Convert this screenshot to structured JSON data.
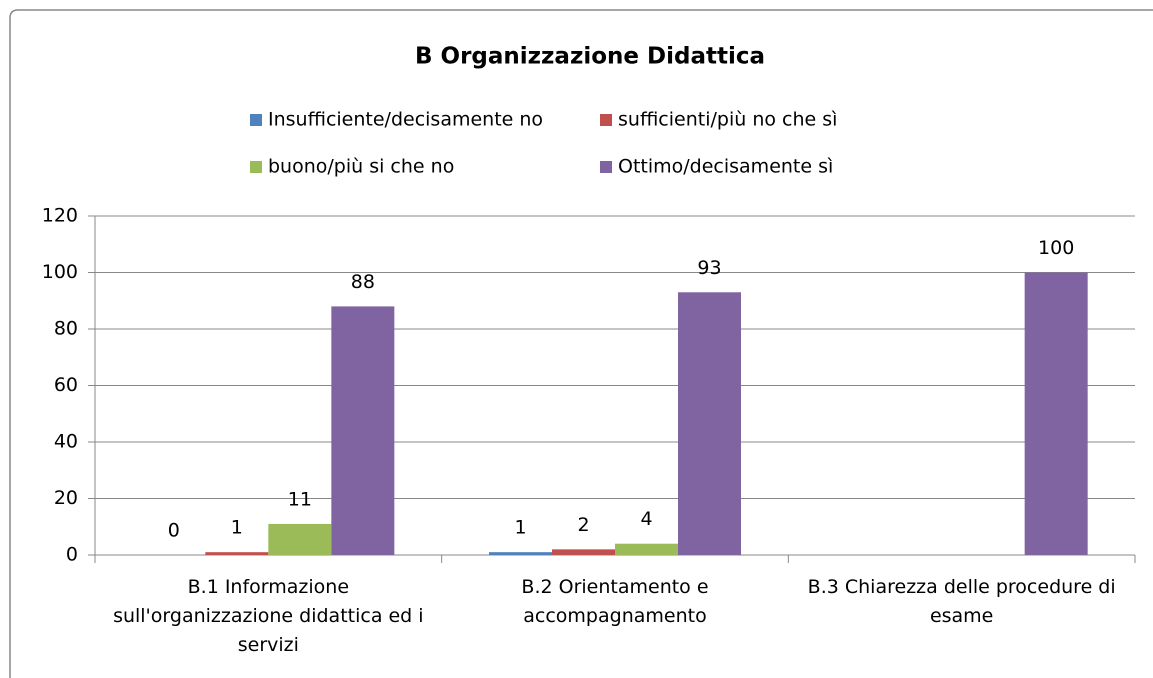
{
  "chart_data": {
    "type": "bar",
    "title": "B Organizzazione Didattica",
    "categories": [
      "B.1 Informazione sull'organizzazione didattica ed i servizi",
      "B.2 Orientamento e accompagnamento",
      "B.3 Chiarezza delle procedure di esame"
    ],
    "series": [
      {
        "name": "Insufficiente/decisamente no",
        "color": "#4f81bd",
        "values": [
          0,
          1,
          null
        ]
      },
      {
        "name": "sufficienti/più no che sì",
        "color": "#c0504d",
        "values": [
          1,
          2,
          null
        ]
      },
      {
        "name": "buono/più si che no",
        "color": "#9bbb59",
        "values": [
          11,
          4,
          null
        ]
      },
      {
        "name": "Ottimo/decisamente sì",
        "color": "#8064a2",
        "values": [
          88,
          93,
          100
        ]
      }
    ],
    "ylim": [
      0,
      120
    ],
    "yticks": [
      0,
      20,
      40,
      60,
      80,
      100,
      120
    ],
    "grid": true,
    "legend": "top"
  }
}
